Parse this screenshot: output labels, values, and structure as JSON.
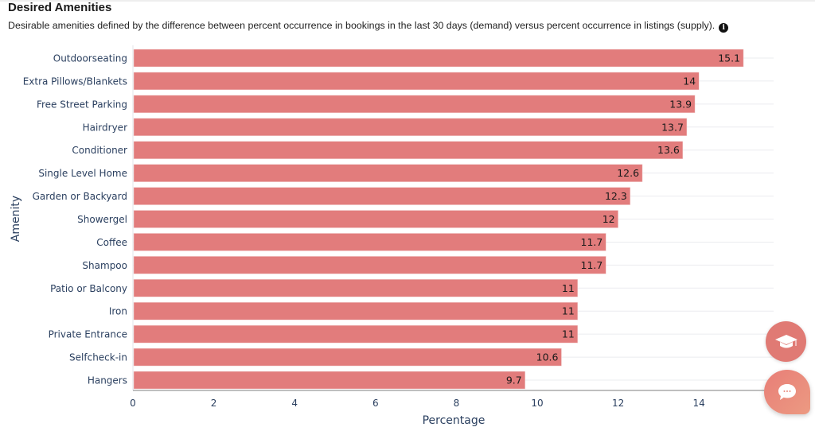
{
  "header": {
    "title": "Desired Amenities",
    "subtitle": "Desirable amenities defined by the difference between percent occurrence in bookings in the last 30 days (demand) versus percent occurrence in listings (supply).",
    "info_icon": "info-icon"
  },
  "floating_buttons": {
    "education": "graduation-cap-icon",
    "chat": "chat-bubble-icon"
  },
  "colors": {
    "bar": "#e27c7c",
    "grid": "#ebecef",
    "axis_text": "#2a3f5f"
  },
  "chart_data": {
    "type": "bar",
    "orientation": "horizontal",
    "title": "Desired Amenities",
    "xlabel": "Percentage",
    "ylabel": "Amenity",
    "xlim": [
      0,
      15.6
    ],
    "xticks": [
      0,
      2,
      4,
      6,
      8,
      10,
      12,
      14
    ],
    "grid": true,
    "categories": [
      "Outdoorseating",
      "Extra Pillows/Blankets",
      "Free Street Parking",
      "Hairdryer",
      "Conditioner",
      "Single Level Home",
      "Garden or Backyard",
      "Showergel",
      "Coffee",
      "Shampoo",
      "Patio or Balcony",
      "Iron",
      "Private Entrance",
      "Selfcheck-in",
      "Hangers"
    ],
    "values": [
      15.1,
      14,
      13.9,
      13.7,
      13.6,
      12.6,
      12.3,
      12,
      11.7,
      11.7,
      11,
      11,
      11,
      10.6,
      9.7
    ],
    "data_labels": [
      "15.1",
      "14",
      "13.9",
      "13.7",
      "13.6",
      "12.6",
      "12.3",
      "12",
      "11.7",
      "11.7",
      "11",
      "11",
      "11",
      "10.6",
      "9.7"
    ]
  }
}
